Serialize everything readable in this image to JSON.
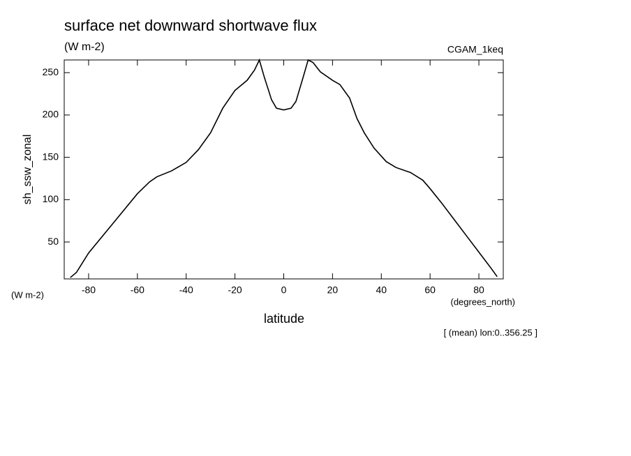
{
  "chart_data": {
    "type": "line",
    "title": "surface net downward shortwave flux",
    "subtitle": "(W m-2)",
    "dataset_label": "CGAM_1keq",
    "y_label": "sh_ssw_zonal",
    "y_units_label": "(W m-2)",
    "x_units_label": "(degrees_north)",
    "x_label": "latitude",
    "footnote": "[ (mean) lon:0..356.25 ]",
    "x": [
      -87.5,
      -85,
      -80,
      -70,
      -60,
      -55,
      -52,
      -46,
      -40,
      -35,
      -30,
      -25,
      -20,
      -15,
      -12,
      -10,
      -8,
      -5,
      -3,
      0,
      3,
      5,
      8,
      10,
      12,
      15,
      20,
      23,
      27,
      30,
      33,
      37,
      42,
      46,
      52,
      57,
      60,
      65,
      70,
      75,
      80,
      85,
      87.5
    ],
    "series": [
      {
        "name": "sh_ssw_zonal",
        "color": "#000000",
        "values": [
          8,
          14,
          37,
          72,
          107,
          121,
          127,
          134,
          144,
          159,
          179,
          208,
          229,
          241,
          253,
          265,
          245,
          218,
          208,
          206,
          208,
          216,
          245,
          265,
          262,
          251,
          241,
          236,
          220,
          196,
          179,
          161,
          145,
          138,
          132,
          123,
          113,
          95,
          76,
          57,
          38,
          19,
          9
        ]
      }
    ],
    "xlim": [
      -90,
      90
    ],
    "ylim": [
      6.4,
      265
    ],
    "xticks": [
      -80,
      -60,
      -40,
      -20,
      0,
      20,
      40,
      60,
      80
    ],
    "yticks": [
      50,
      100,
      150,
      200,
      250
    ]
  }
}
